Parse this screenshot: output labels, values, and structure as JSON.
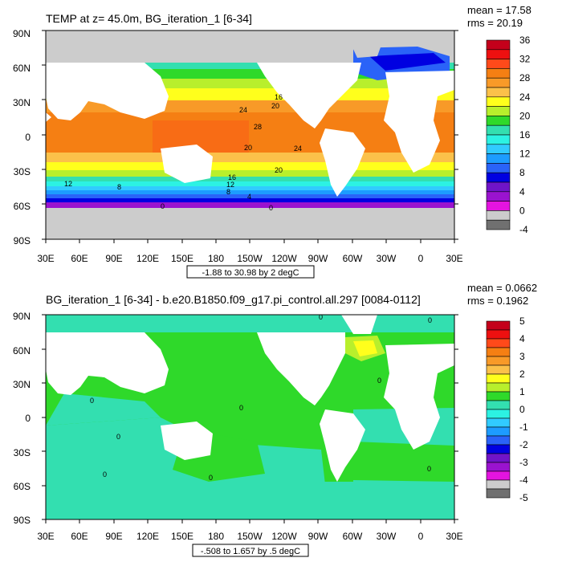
{
  "panels": [
    {
      "title": "TEMP at z=  45.0m, BG_iteration_1 [6-34]",
      "mean_label": "mean = 17.58",
      "rms_label": "rms = 20.19",
      "range_label": "-1.88 to 30.98 by 2 degC",
      "lat_labels": [
        "90N",
        "60N",
        "30N",
        "0",
        "30S",
        "60S",
        "90S"
      ],
      "lon_labels": [
        "30E",
        "60E",
        "90E",
        "120E",
        "150E",
        "180",
        "150W",
        "120W",
        "90W",
        "60W",
        "30W",
        "0",
        "30E"
      ],
      "colorbar": {
        "labels": [
          "36",
          "32",
          "28",
          "24",
          "20",
          "16",
          "12",
          "8",
          "4",
          "0",
          "-4"
        ],
        "colors": [
          "#c4001b",
          "#ee1010",
          "#ff4a1a",
          "#f57f13",
          "#f89a28",
          "#fbc14a",
          "#ffff1c",
          "#b8ef2c",
          "#2fd92a",
          "#33dfb0",
          "#2cf2e3",
          "#31cbff",
          "#1d9cff",
          "#2a63f8",
          "#0000e1",
          "#7014c8",
          "#9a13cf",
          "#e414e0",
          "#cccccc",
          "#707070"
        ]
      },
      "contour_labels": [
        "16",
        "20",
        "24",
        "28",
        "20",
        "24",
        "20",
        "16",
        "12",
        "8",
        "12",
        "8",
        "4",
        "0",
        "0"
      ]
    },
    {
      "title": "BG_iteration_1 [6-34] - b.e20.B1850.f09_g17.pi_control.all.297 [0084-0112]",
      "mean_label": "mean = 0.0662",
      "rms_label": "rms = 0.1962",
      "range_label": "-.508 to 1.657 by .5 degC",
      "lat_labels": [
        "90N",
        "60N",
        "30N",
        "0",
        "30S",
        "60S",
        "90S"
      ],
      "lon_labels": [
        "30E",
        "60E",
        "90E",
        "120E",
        "150E",
        "180",
        "150W",
        "120W",
        "90W",
        "60W",
        "30W",
        "0",
        "30E"
      ],
      "colorbar": {
        "labels": [
          "5",
          "4",
          "3",
          "2",
          "1",
          "0",
          "-1",
          "-2",
          "-3",
          "-4",
          "-5"
        ],
        "colors": [
          "#c4001b",
          "#ee1010",
          "#ff4a1a",
          "#f57f13",
          "#f89a28",
          "#fbc14a",
          "#ffff1c",
          "#b8ef2c",
          "#2fd92a",
          "#33dfb0",
          "#2cf2e3",
          "#31cbff",
          "#1d9cff",
          "#2a63f8",
          "#0000e1",
          "#7014c8",
          "#9a13cf",
          "#e414e0",
          "#cccccc",
          "#707070"
        ]
      },
      "contour_labels": [
        "0",
        "0",
        "0",
        "0",
        "0",
        "0",
        "0",
        "0",
        "0"
      ]
    }
  ]
}
